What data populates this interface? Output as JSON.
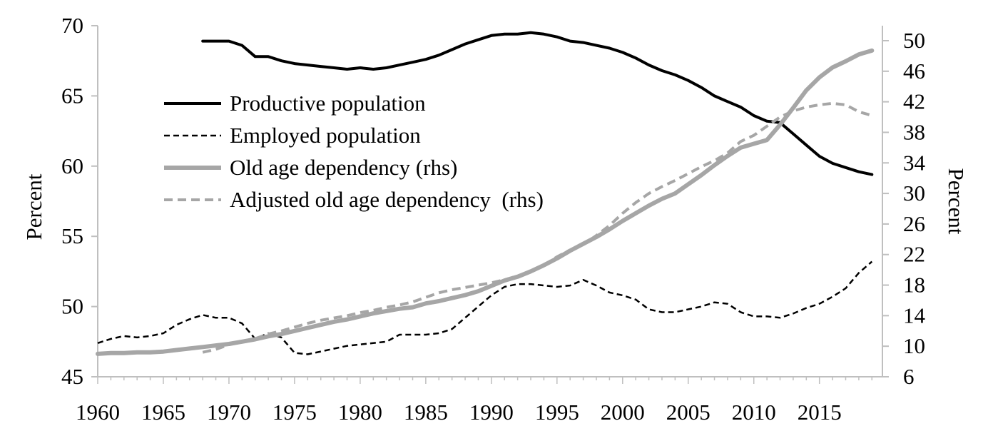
{
  "chart_data": {
    "type": "line",
    "title": "",
    "xlabel": "",
    "ylabel_left": "Percent",
    "ylabel_right": "Percent",
    "xlim": [
      1960,
      2019
    ],
    "ylim_left": [
      45,
      70
    ],
    "ylim_right": [
      6,
      52
    ],
    "x_ticks": [
      1960,
      1965,
      1970,
      1975,
      1980,
      1985,
      1990,
      1995,
      2000,
      2005,
      2010,
      2015
    ],
    "x_tick_labels": [
      "1960",
      "1965",
      "1970",
      "1975",
      "1980",
      "1985",
      "1990",
      "1995",
      "2000",
      "2005",
      "2010",
      "2015"
    ],
    "y_left_ticks": [
      45,
      50,
      55,
      60,
      65,
      70
    ],
    "y_left_tick_labels": [
      "45",
      "50",
      "55",
      "60",
      "65",
      "70"
    ],
    "y_right_ticks": [
      6,
      10,
      14,
      18,
      22,
      26,
      30,
      34,
      38,
      42,
      46,
      50
    ],
    "y_right_tick_labels": [
      "6",
      "10",
      "14",
      "18",
      "22",
      "26",
      "30",
      "34",
      "38",
      "42",
      "46",
      "50"
    ],
    "grid": false,
    "legend_position": "top-left",
    "series": [
      {
        "name": "Productive population",
        "axis": "left",
        "color": "#000000",
        "dash": "solid",
        "x": [
          1968,
          1969,
          1970,
          1971,
          1972,
          1973,
          1974,
          1975,
          1976,
          1977,
          1978,
          1979,
          1980,
          1981,
          1982,
          1983,
          1984,
          1985,
          1986,
          1987,
          1988,
          1989,
          1990,
          1991,
          1992,
          1993,
          1994,
          1995,
          1996,
          1997,
          1998,
          1999,
          2000,
          2001,
          2002,
          2003,
          2004,
          2005,
          2006,
          2007,
          2008,
          2009,
          2010,
          2011,
          2012,
          2013,
          2014,
          2015,
          2016,
          2017,
          2018,
          2019
        ],
        "y": [
          68.9,
          68.9,
          68.9,
          68.6,
          67.8,
          67.8,
          67.5,
          67.3,
          67.2,
          67.1,
          67.0,
          66.9,
          67.0,
          66.9,
          67.0,
          67.2,
          67.4,
          67.6,
          67.9,
          68.3,
          68.7,
          69.0,
          69.3,
          69.4,
          69.4,
          69.5,
          69.4,
          69.2,
          68.9,
          68.8,
          68.6,
          68.4,
          68.1,
          67.7,
          67.2,
          66.8,
          66.5,
          66.1,
          65.6,
          65.0,
          64.6,
          64.2,
          63.6,
          63.2,
          63.1,
          62.3,
          61.5,
          60.7,
          60.2,
          59.9,
          59.6,
          59.4
        ]
      },
      {
        "name": "Employed population",
        "axis": "left",
        "color": "#000000",
        "dash": "dashed",
        "x": [
          1960,
          1961,
          1962,
          1963,
          1964,
          1965,
          1966,
          1967,
          1968,
          1969,
          1970,
          1971,
          1972,
          1973,
          1974,
          1975,
          1976,
          1977,
          1978,
          1979,
          1980,
          1981,
          1982,
          1983,
          1984,
          1985,
          1986,
          1987,
          1988,
          1989,
          1990,
          1991,
          1992,
          1993,
          1994,
          1995,
          1996,
          1997,
          1998,
          1999,
          2000,
          2001,
          2002,
          2003,
          2004,
          2005,
          2006,
          2007,
          2008,
          2009,
          2010,
          2011,
          2012,
          2013,
          2014,
          2015,
          2016,
          2017,
          2018,
          2019
        ],
        "y": [
          47.4,
          47.7,
          47.9,
          47.8,
          47.9,
          48.1,
          48.7,
          49.1,
          49.4,
          49.2,
          49.2,
          48.8,
          47.7,
          48.1,
          47.8,
          46.7,
          46.6,
          46.8,
          47.0,
          47.2,
          47.3,
          47.4,
          47.5,
          48.0,
          48.0,
          48.0,
          48.1,
          48.4,
          49.2,
          50.0,
          50.8,
          51.4,
          51.6,
          51.6,
          51.5,
          51.4,
          51.5,
          51.9,
          51.5,
          51.0,
          50.8,
          50.5,
          49.8,
          49.6,
          49.6,
          49.8,
          50.0,
          50.3,
          50.2,
          49.6,
          49.3,
          49.3,
          49.2,
          49.5,
          49.9,
          50.2,
          50.7,
          51.3,
          52.4,
          53.2
        ]
      },
      {
        "name": "Old age dependency (rhs)",
        "axis": "right",
        "color": "#a6a6a6",
        "dash": "solid",
        "x": [
          1960,
          1961,
          1962,
          1963,
          1964,
          1965,
          1966,
          1967,
          1968,
          1969,
          1970,
          1971,
          1972,
          1973,
          1974,
          1975,
          1976,
          1977,
          1978,
          1979,
          1980,
          1981,
          1982,
          1983,
          1984,
          1985,
          1986,
          1987,
          1988,
          1989,
          1990,
          1991,
          1992,
          1993,
          1994,
          1995,
          1996,
          1997,
          1998,
          1999,
          2000,
          2001,
          2002,
          2003,
          2004,
          2005,
          2006,
          2007,
          2008,
          2009,
          2010,
          2011,
          2012,
          2013,
          2014,
          2015,
          2016,
          2017,
          2018,
          2019
        ],
        "y": [
          9.0,
          9.1,
          9.1,
          9.2,
          9.2,
          9.3,
          9.5,
          9.7,
          9.9,
          10.1,
          10.3,
          10.6,
          10.9,
          11.3,
          11.6,
          12.0,
          12.4,
          12.8,
          13.2,
          13.5,
          13.9,
          14.3,
          14.6,
          14.9,
          15.1,
          15.6,
          15.9,
          16.3,
          16.7,
          17.2,
          17.9,
          18.6,
          19.1,
          19.8,
          20.6,
          21.5,
          22.5,
          23.4,
          24.3,
          25.3,
          26.4,
          27.4,
          28.4,
          29.3,
          30.0,
          31.2,
          32.4,
          33.7,
          34.9,
          36.0,
          36.5,
          37.0,
          39.0,
          41.2,
          43.5,
          45.2,
          46.5,
          47.3,
          48.2,
          48.7
        ]
      },
      {
        "name": "Adjusted old age dependency  (rhs)",
        "axis": "right",
        "color": "#a6a6a6",
        "dash": "dashed",
        "x": [
          1968,
          1969,
          1970,
          1971,
          1972,
          1973,
          1974,
          1975,
          1976,
          1977,
          1978,
          1979,
          1980,
          1981,
          1982,
          1983,
          1984,
          1985,
          1986,
          1987,
          1988,
          1989,
          1990,
          1991,
          1992,
          1993,
          1994,
          1995,
          1996,
          1997,
          1998,
          1999,
          2000,
          2001,
          2002,
          2003,
          2004,
          2005,
          2006,
          2007,
          2008,
          2009,
          2010,
          2011,
          2012,
          2013,
          2014,
          2015,
          2016,
          2017,
          2018,
          2019
        ],
        "y": [
          9.2,
          9.6,
          10.2,
          10.6,
          11.0,
          11.6,
          12.0,
          12.5,
          13.0,
          13.4,
          13.7,
          14.0,
          14.4,
          14.7,
          15.1,
          15.4,
          15.8,
          16.4,
          17.0,
          17.4,
          17.7,
          18.0,
          18.3,
          18.7,
          19.2,
          19.8,
          20.6,
          21.7,
          22.6,
          23.3,
          24.5,
          25.8,
          27.4,
          28.8,
          30.0,
          30.9,
          31.7,
          32.6,
          33.5,
          34.3,
          35.3,
          36.8,
          37.6,
          38.8,
          40.0,
          40.8,
          41.3,
          41.6,
          41.8,
          41.6,
          40.7,
          40.2
        ]
      }
    ]
  }
}
